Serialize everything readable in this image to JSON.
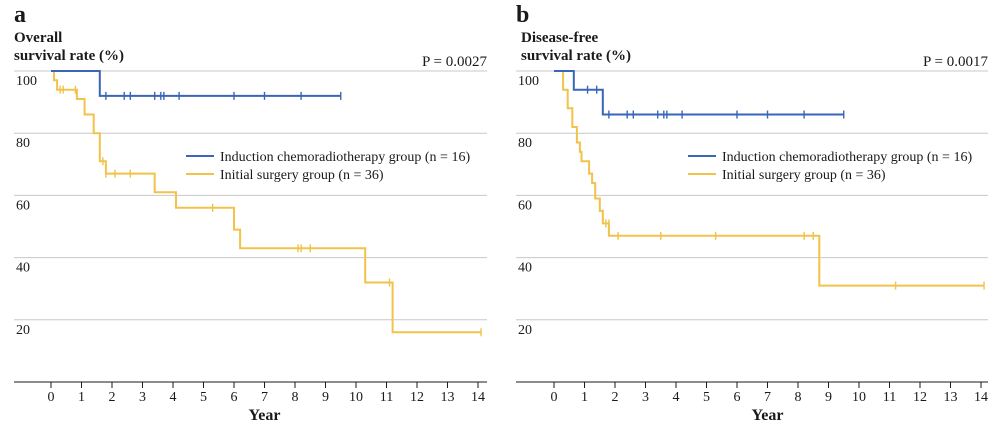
{
  "colors": {
    "induction": "#3a66b8",
    "surgery": "#f2c24a",
    "grid": "#c8c8c8",
    "axis": "#1a1a1a"
  },
  "chart_data": [
    {
      "type": "line",
      "subtype": "kaplan-meier-step",
      "panel_label": "a",
      "ylabel_lines": [
        "Overall",
        "survival rate (%)"
      ],
      "pvalue": "P = 0.0027",
      "xlabel": "Year",
      "xlim": [
        0,
        14
      ],
      "ylim": [
        0,
        100
      ],
      "xticks": [
        0,
        1,
        2,
        3,
        4,
        5,
        6,
        7,
        8,
        9,
        10,
        11,
        12,
        13,
        14
      ],
      "yticks": [
        20,
        40,
        60,
        80,
        100
      ],
      "grid": true,
      "legend_position": "right, middle",
      "series": [
        {
          "name": "Induction chemoradiotherapy group (n = 16)",
          "color_key": "induction",
          "steps": [
            [
              0,
              100
            ],
            [
              1.6,
              100
            ],
            [
              1.6,
              92
            ],
            [
              9.5,
              92
            ]
          ],
          "censor_times": [
            1.8,
            2.4,
            2.6,
            3.4,
            3.6,
            3.7,
            4.2,
            6.0,
            7.0,
            8.2,
            9.5
          ],
          "censor_values": [
            92,
            92,
            92,
            92,
            92,
            92,
            92,
            92,
            92,
            92,
            92
          ]
        },
        {
          "name": "Initial surgery group (n = 36)",
          "color_key": "surgery",
          "steps": [
            [
              0,
              100
            ],
            [
              0.1,
              100
            ],
            [
              0.1,
              97
            ],
            [
              0.2,
              97
            ],
            [
              0.2,
              94
            ],
            [
              0.85,
              94
            ],
            [
              0.85,
              91
            ],
            [
              1.1,
              91
            ],
            [
              1.1,
              86
            ],
            [
              1.4,
              86
            ],
            [
              1.4,
              80
            ],
            [
              1.6,
              80
            ],
            [
              1.6,
              71
            ],
            [
              1.8,
              71
            ],
            [
              1.8,
              67
            ],
            [
              3.4,
              67
            ],
            [
              3.4,
              61
            ],
            [
              4.1,
              61
            ],
            [
              4.1,
              56
            ],
            [
              6.0,
              56
            ],
            [
              6.0,
              49
            ],
            [
              6.2,
              49
            ],
            [
              6.2,
              43
            ],
            [
              10.3,
              43
            ],
            [
              10.3,
              32
            ],
            [
              11.2,
              32
            ],
            [
              11.2,
              16
            ],
            [
              14.1,
              16
            ]
          ],
          "censor_times": [
            0.3,
            0.4,
            0.8,
            1.7,
            1.8,
            2.1,
            2.6,
            5.3,
            8.1,
            8.2,
            8.5,
            11.1,
            14.1
          ],
          "censor_values": [
            94,
            94,
            94,
            71,
            67,
            67,
            67,
            56,
            43,
            43,
            43,
            32,
            16
          ]
        }
      ]
    },
    {
      "type": "line",
      "subtype": "kaplan-meier-step",
      "panel_label": "b",
      "ylabel_lines": [
        "Disease-free",
        "survival rate (%)"
      ],
      "pvalue": "P = 0.0017",
      "xlabel": "Year",
      "xlim": [
        0,
        14
      ],
      "ylim": [
        0,
        100
      ],
      "xticks": [
        0,
        1,
        2,
        3,
        4,
        5,
        6,
        7,
        8,
        9,
        10,
        11,
        12,
        13,
        14
      ],
      "yticks": [
        20,
        40,
        60,
        80,
        100
      ],
      "grid": true,
      "legend_position": "right, middle",
      "series": [
        {
          "name": "Induction chemoradiotherapy group (n = 16)",
          "color_key": "induction",
          "steps": [
            [
              0,
              100
            ],
            [
              0.65,
              100
            ],
            [
              0.65,
              94
            ],
            [
              1.6,
              94
            ],
            [
              1.6,
              86
            ],
            [
              9.5,
              86
            ]
          ],
          "censor_times": [
            1.1,
            1.4,
            1.8,
            2.4,
            2.6,
            3.4,
            3.6,
            3.7,
            4.2,
            6.0,
            7.0,
            8.2,
            9.5
          ],
          "censor_values": [
            94,
            94,
            86,
            86,
            86,
            86,
            86,
            86,
            86,
            86,
            86,
            86,
            86
          ]
        },
        {
          "name": "Initial surgery group (n = 36)",
          "color_key": "surgery",
          "steps": [
            [
              0,
              100
            ],
            [
              0.3,
              100
            ],
            [
              0.3,
              94
            ],
            [
              0.45,
              94
            ],
            [
              0.45,
              88
            ],
            [
              0.6,
              88
            ],
            [
              0.6,
              82
            ],
            [
              0.75,
              82
            ],
            [
              0.75,
              77
            ],
            [
              0.85,
              77
            ],
            [
              0.85,
              74
            ],
            [
              0.9,
              74
            ],
            [
              0.9,
              71
            ],
            [
              1.15,
              71
            ],
            [
              1.15,
              67
            ],
            [
              1.25,
              67
            ],
            [
              1.25,
              64
            ],
            [
              1.35,
              64
            ],
            [
              1.35,
              59
            ],
            [
              1.5,
              59
            ],
            [
              1.5,
              55
            ],
            [
              1.6,
              55
            ],
            [
              1.6,
              51
            ],
            [
              1.8,
              51
            ],
            [
              1.8,
              47
            ],
            [
              8.7,
              47
            ],
            [
              8.7,
              31
            ],
            [
              14.1,
              31
            ]
          ],
          "censor_times": [
            1.7,
            1.8,
            2.1,
            3.5,
            5.3,
            8.2,
            8.5,
            11.2,
            14.1
          ],
          "censor_values": [
            51,
            51,
            47,
            47,
            47,
            47,
            47,
            31,
            31
          ]
        }
      ]
    }
  ]
}
